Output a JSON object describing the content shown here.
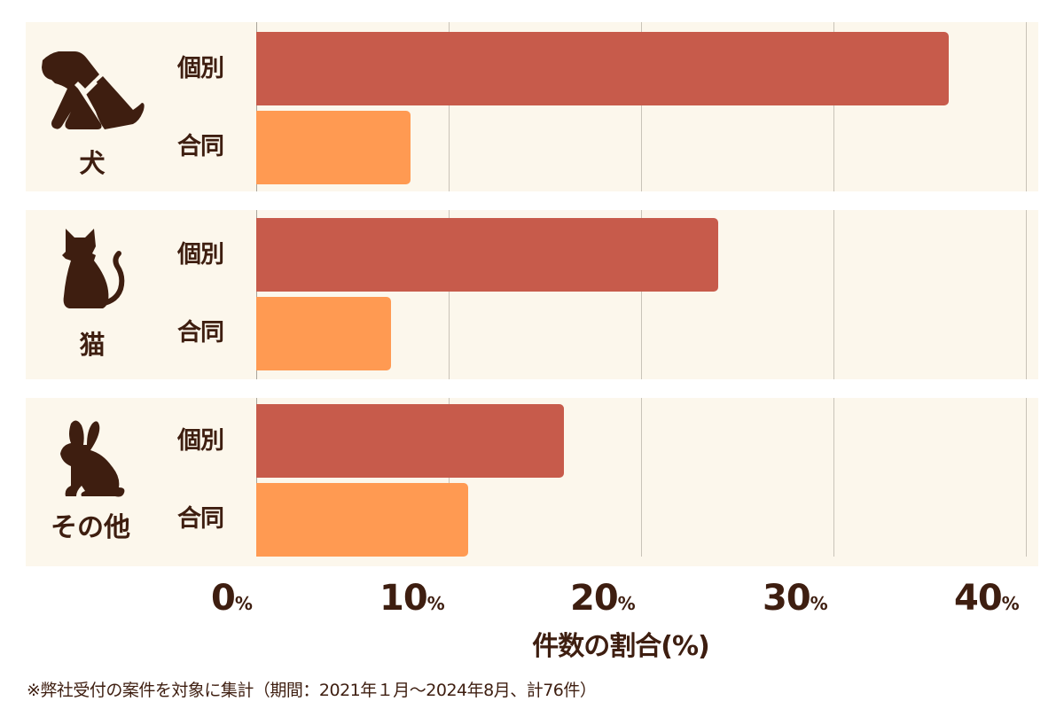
{
  "chart_data": {
    "type": "bar",
    "orientation": "horizontal",
    "title": "",
    "xlabel": "件数の割合(%)",
    "ylabel": "",
    "xlim": [
      0,
      40
    ],
    "x_ticks": [
      "0%",
      "10%",
      "20%",
      "30%",
      "40%"
    ],
    "grid": true,
    "categories": [
      "犬",
      "猫",
      "その他"
    ],
    "series": [
      {
        "name": "個別",
        "color": "#c75b4b",
        "values": [
          36,
          24,
          16
        ]
      },
      {
        "name": "合同",
        "color": "#ff9a52",
        "values": [
          8,
          7,
          11
        ]
      }
    ],
    "footnote": "※弊社受付の案件を対象に集計（期間：2021年１月～2024年8月、計76件）"
  },
  "groups": [
    {
      "label": "犬",
      "icon": "dog-icon",
      "individual_label": "個別",
      "joint_label": "合同",
      "individual": 36,
      "joint": 8
    },
    {
      "label": "猫",
      "icon": "cat-icon",
      "individual_label": "個別",
      "joint_label": "合同",
      "individual": 24,
      "joint": 7
    },
    {
      "label": "その他",
      "icon": "rabbit-icon",
      "individual_label": "個別",
      "joint_label": "合同",
      "individual": 16,
      "joint": 11
    }
  ],
  "axis": {
    "ticks": [
      {
        "num": "0",
        "unit": "%"
      },
      {
        "num": "10",
        "unit": "%"
      },
      {
        "num": "20",
        "unit": "%"
      },
      {
        "num": "30",
        "unit": "%"
      },
      {
        "num": "40",
        "unit": "%"
      }
    ],
    "label": "件数の割合(%)"
  },
  "footnote": "※弊社受付の案件を対象に集計（期間：2021年１月～2024年8月、計76件）",
  "colors": {
    "individual": "#c75b4b",
    "joint": "#ff9a52",
    "panel_bg": "#fcf7ec",
    "text": "#3e1e10",
    "grid": "#c9c3b8"
  }
}
